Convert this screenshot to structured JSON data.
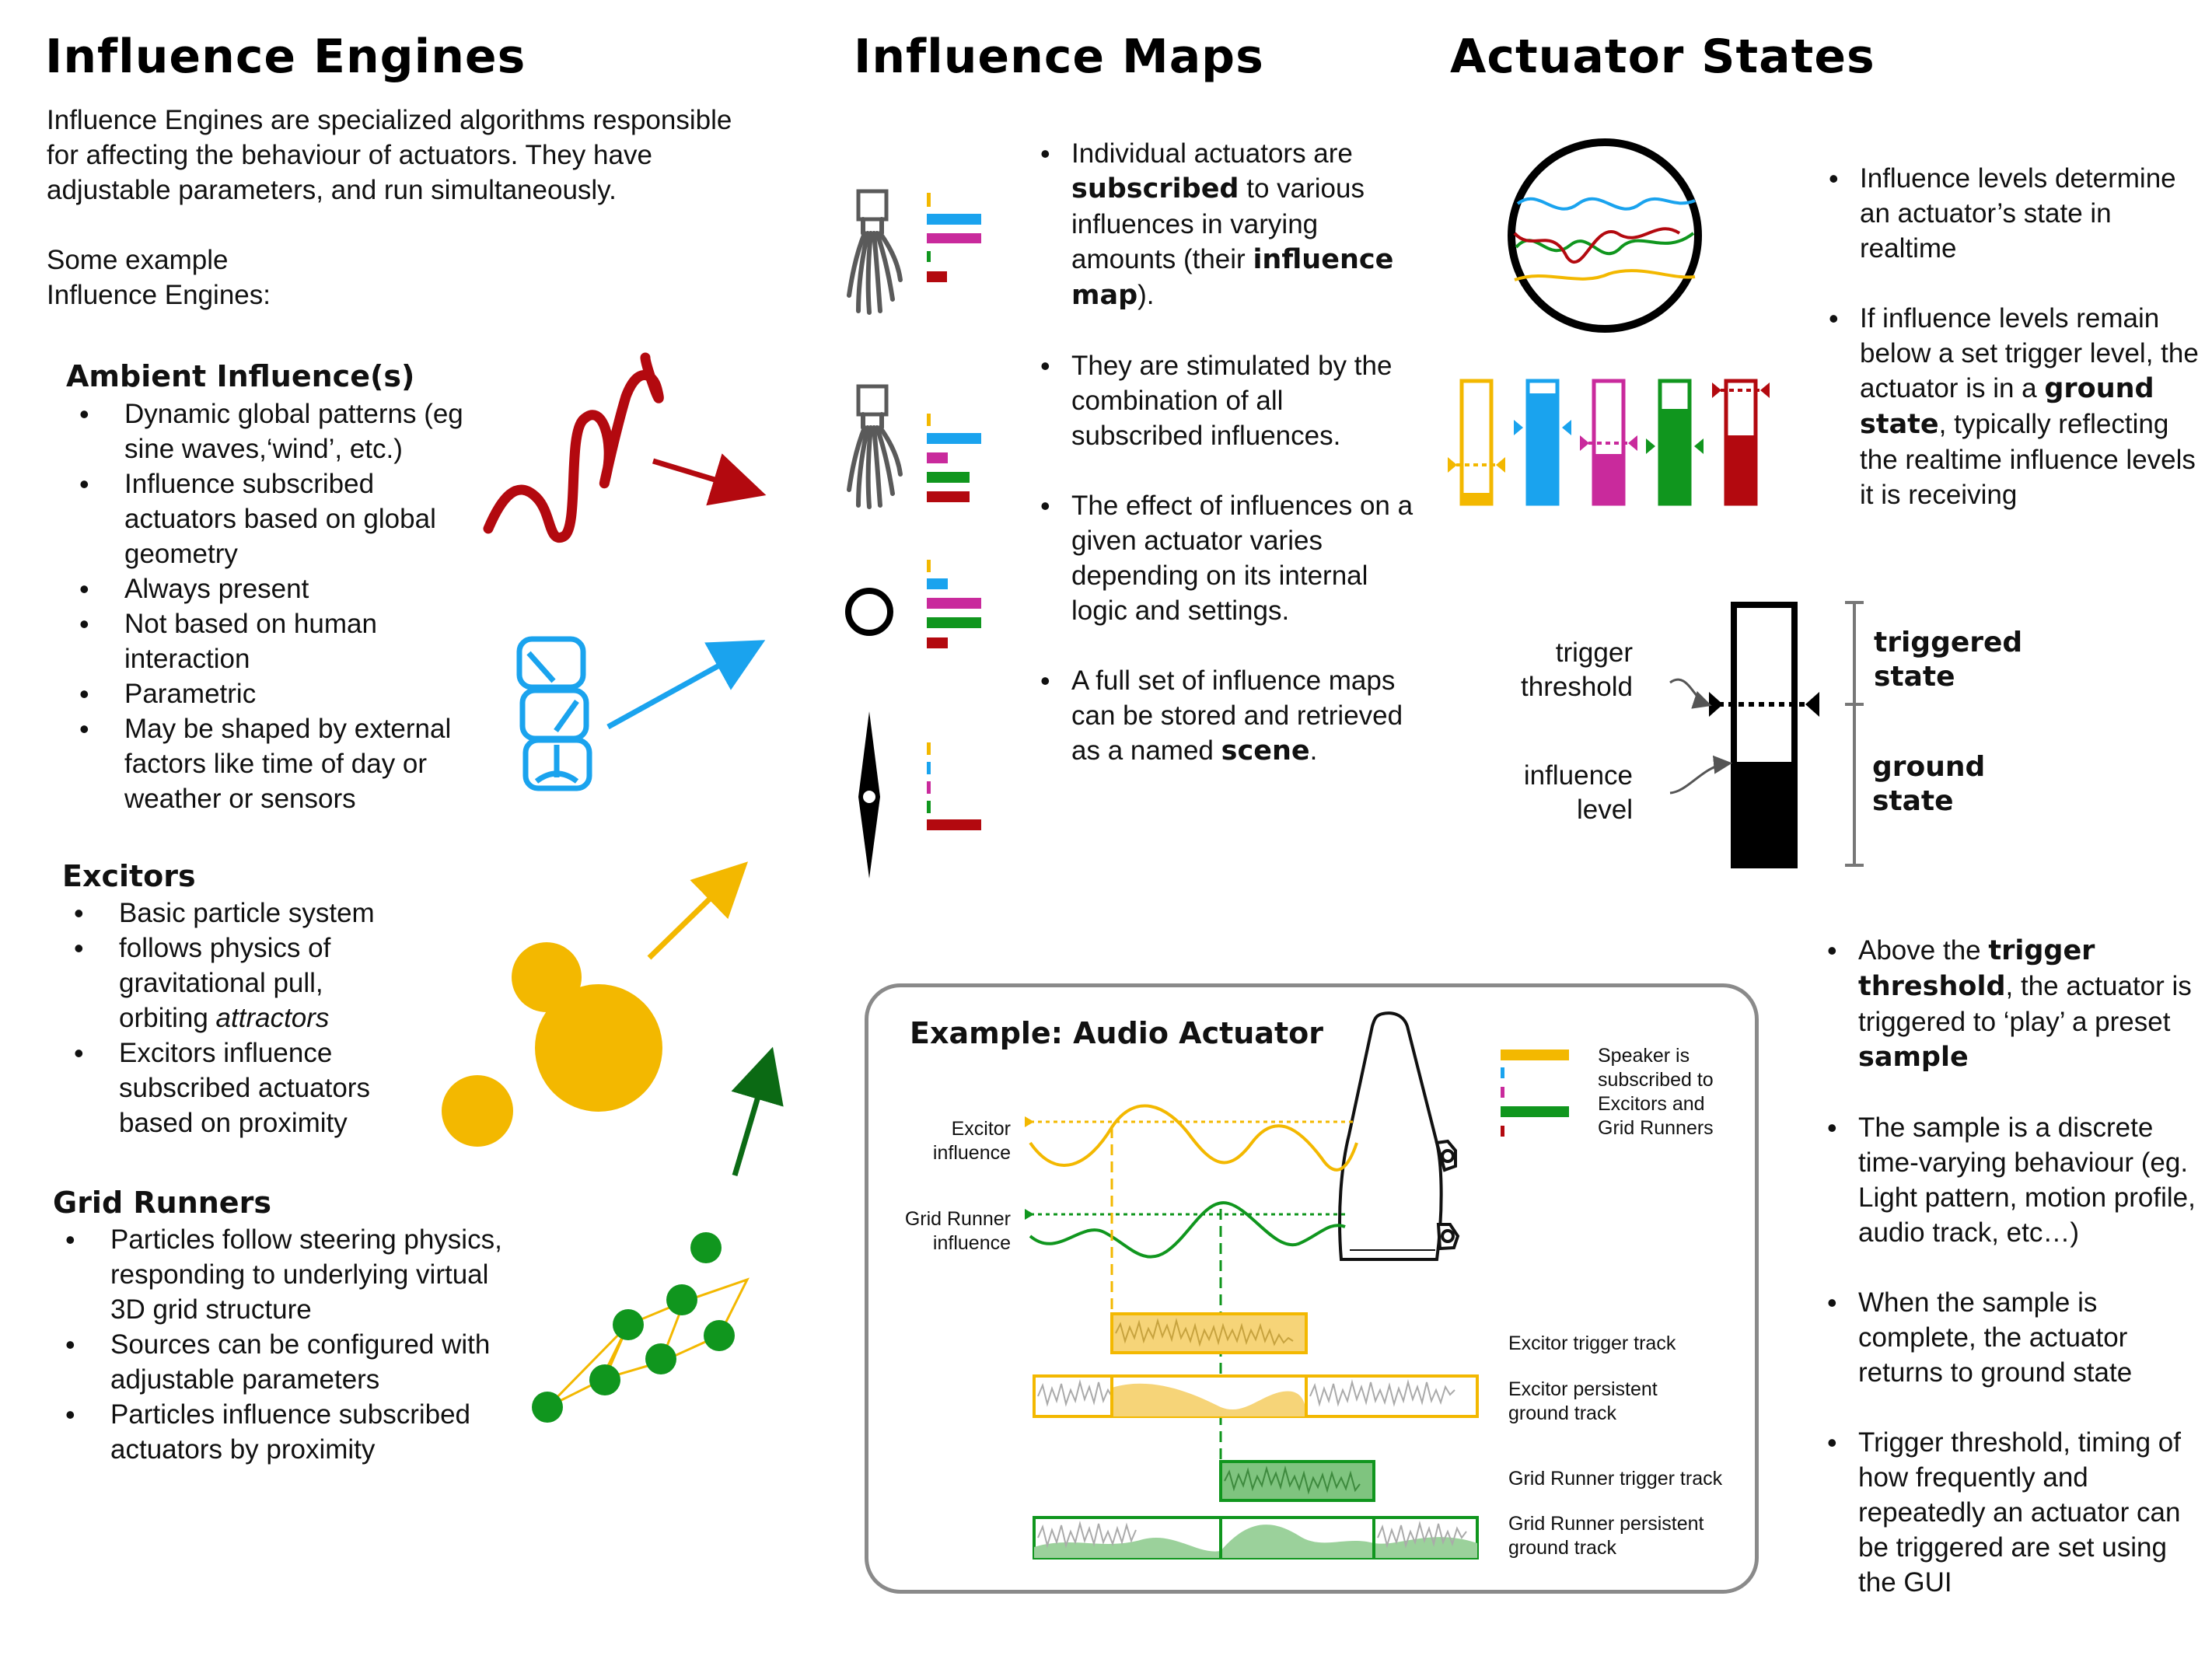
{
  "engines": {
    "title": "Influence Engines",
    "intro": "Influence Engines are specialized algorithms responsible for affecting the behaviour of actuators. They have adjustable parameters, and run simultaneously.",
    "examples_label": "Some example Influence Engines:",
    "ambient": {
      "title": "Ambient Influence(s)",
      "items": [
        "Dynamic global patterns (eg sine waves,‘wind’, etc.)",
        "Influence subscribed actuators based on global geometry",
        "Always present",
        "Not based on human interaction",
        "Parametric",
        "May be shaped by external factors like time of day or weather or sensors"
      ]
    },
    "excitors": {
      "title": "Excitors",
      "items": [
        "Basic particle system",
        "follows physics of gravitational pull, orbiting",
        "Excitors influence subscribed actuators based on proximity"
      ],
      "attractors_word": "attractors"
    },
    "grid_runners": {
      "title": "Grid Runners",
      "items": [
        "Particles follow steering physics, responding to underlying virtual 3D grid structure",
        "Sources can be configured with adjustable parameters",
        "Particles influence subscribed actuators by proximity"
      ]
    }
  },
  "maps": {
    "title": "Influence Maps",
    "b1": {
      "a": "Individual actuators are ",
      "b": "subscribed",
      "c": " to various influences in varying amounts (their ",
      "d": "influence map",
      "e": ")."
    },
    "b2": "They are stimulated by the combination of all subscribed influences.",
    "b3": "The effect of influences on a given actuator varies depending on its internal logic and settings.",
    "b4": {
      "a": "A full set of influence maps can be stored and retrieved as a named ",
      "b": "scene",
      "c": "."
    }
  },
  "states": {
    "title": "Actuator States",
    "b1": "Influence levels determine an actuator’s state in realtime",
    "b2": {
      "a": "If influence levels remain below a set trigger level, the actuator is in a ",
      "b": "ground state",
      "c": ", typically reflecting the realtime influence levels it is receiving"
    },
    "trigger_threshold_label": "trigger threshold",
    "influence_level_label": "influence level",
    "triggered_state_label": "triggered state",
    "ground_state_label": "ground state",
    "b3": {
      "a": "Above the ",
      "b": "trigger threshold",
      "c": ", the actuator is triggered to ‘play’ a preset ",
      "d": "sample"
    },
    "b4": "The sample is a discrete time-varying behaviour (eg. Light pattern, motion profile, audio track, etc…)",
    "b5": "When the sample is complete, the actuator returns to ground state",
    "b6": "Trigger threshold, timing of how frequently and repeatedly an actuator can be triggered are set using the GUI"
  },
  "audio_example": {
    "title": "Example: Audio Actuator",
    "excitor_influence": "Excitor influence",
    "grid_runner_influence": "Grid Runner influence",
    "speaker_note": "Speaker is subscribed to Excitors and Grid Runners",
    "excitor_trigger_track": "Excitor trigger track",
    "excitor_persistent_track": "Excitor persistent ground track",
    "grid_trigger_track": "Grid Runner trigger track",
    "grid_persistent_track": "Grid Runner persistent ground track"
  },
  "colors": {
    "ambient_red": "#b3090f",
    "blue": "#1aa3ee",
    "magenta": "#c92a9c",
    "green": "#10961e",
    "gold": "#f3b800",
    "dark_green": "#0b6a14",
    "gray": "#5a5a5a"
  },
  "icons": [
    "sine-wave-icon",
    "gauge-stack-icon",
    "orbs-icon",
    "grid-runner-nodes-icon",
    "squid-actuator-icon",
    "ring-actuator-icon",
    "spindle-actuator-icon",
    "influence-circle-icon",
    "speaker-icon"
  ]
}
